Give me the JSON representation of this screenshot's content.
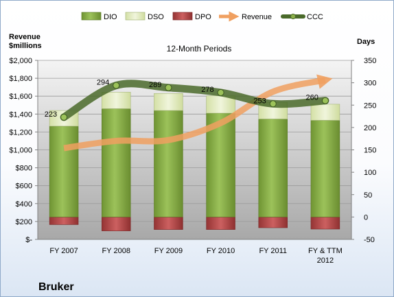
{
  "company": "Bruker",
  "chart_data": {
    "type": "bar",
    "title": "12-Month Periods",
    "left_axis_label": "Revenue\n$millions",
    "right_axis_label": "Days",
    "categories": [
      "FY 2007",
      "FY 2008",
      "FY 2009",
      "FY 2010",
      "FY 2011",
      "FY & TTM 2012"
    ],
    "left_axis": {
      "min": 0,
      "max": 2000,
      "step": 200,
      "tick_labels": [
        "$-",
        "$200",
        "$400",
        "$600",
        "$800",
        "$1,000",
        "$1,200",
        "$1,400",
        "$1,600",
        "$1,800",
        "$2,000"
      ]
    },
    "right_axis": {
      "min": -50,
      "max": 350,
      "step": 50,
      "tick_labels": [
        "-50",
        "0",
        "50",
        "100",
        "150",
        "200",
        "250",
        "300",
        "350"
      ]
    },
    "series": [
      {
        "name": "DIO",
        "kind": "stacked-bar",
        "axis": "right",
        "color": "#8cb04a",
        "values": [
          203,
          242,
          238,
          232,
          219,
          216
        ]
      },
      {
        "name": "DSO",
        "kind": "stacked-bar",
        "axis": "right",
        "color": "#e2ecbf",
        "values": [
          35,
          37,
          38,
          39,
          37,
          36
        ]
      },
      {
        "name": "DPO",
        "kind": "stacked-bar",
        "axis": "right",
        "color": "#b84a4a",
        "values": [
          -17,
          -31,
          -28,
          -28,
          -24,
          -27
        ]
      },
      {
        "name": "Revenue",
        "kind": "line",
        "axis": "left",
        "color": "#f0a060",
        "values": [
          1020,
          1100,
          1110,
          1300,
          1650,
          1780
        ]
      },
      {
        "name": "CCC",
        "kind": "line",
        "axis": "right",
        "color": "#4a6a2a",
        "values": [
          223,
          294,
          289,
          278,
          253,
          260
        ],
        "labels": [
          "223",
          "294",
          "289",
          "278",
          "253",
          "260"
        ]
      }
    ],
    "grid": true,
    "legend": "top"
  }
}
